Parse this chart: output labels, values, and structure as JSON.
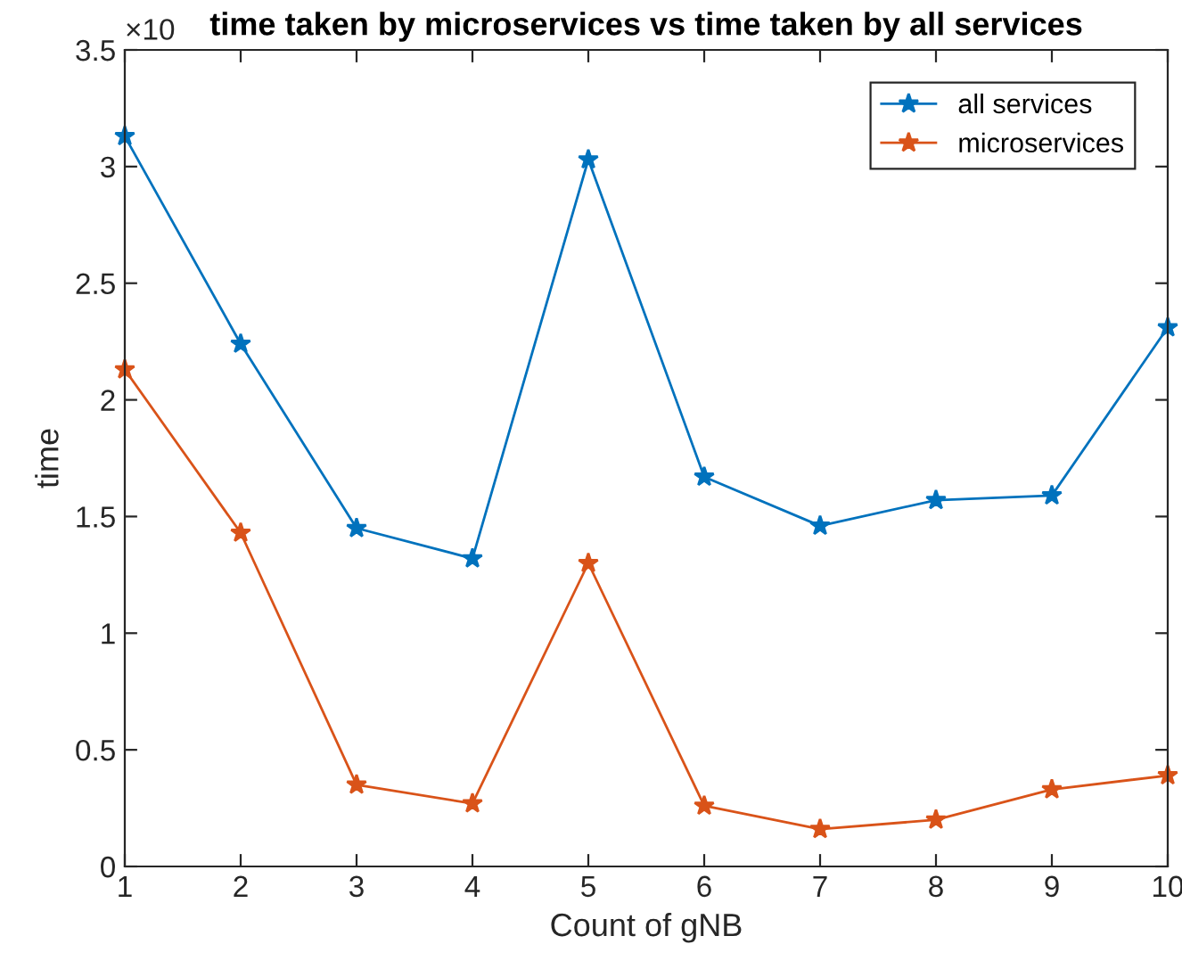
{
  "chart_data": {
    "type": "line",
    "title": "time taken by microservices vs time taken by all services",
    "xlabel": "Count of gNB",
    "ylabel": "time",
    "x": [
      1,
      2,
      3,
      4,
      5,
      6,
      7,
      8,
      9,
      10
    ],
    "series": [
      {
        "name": "all services",
        "color": "#0072bd",
        "values": [
          3.13,
          2.24,
          1.45,
          1.32,
          3.03,
          1.67,
          1.46,
          1.57,
          1.59,
          2.31
        ]
      },
      {
        "name": "microservices",
        "color": "#d95319",
        "values": [
          2.13,
          1.43,
          0.35,
          0.27,
          1.3,
          0.26,
          0.16,
          0.2,
          0.33,
          0.39
        ]
      }
    ],
    "annotations": [
      "×10"
    ],
    "xlim": [
      1,
      10
    ],
    "ylim": [
      0,
      3.5
    ],
    "xticks": [
      1,
      2,
      3,
      4,
      5,
      6,
      7,
      8,
      9,
      10
    ],
    "yticks": [
      0,
      0.5,
      1,
      1.5,
      2,
      2.5,
      3,
      3.5
    ],
    "marker": "star",
    "line_style": "solid",
    "grid": false,
    "legend": "top right"
  }
}
